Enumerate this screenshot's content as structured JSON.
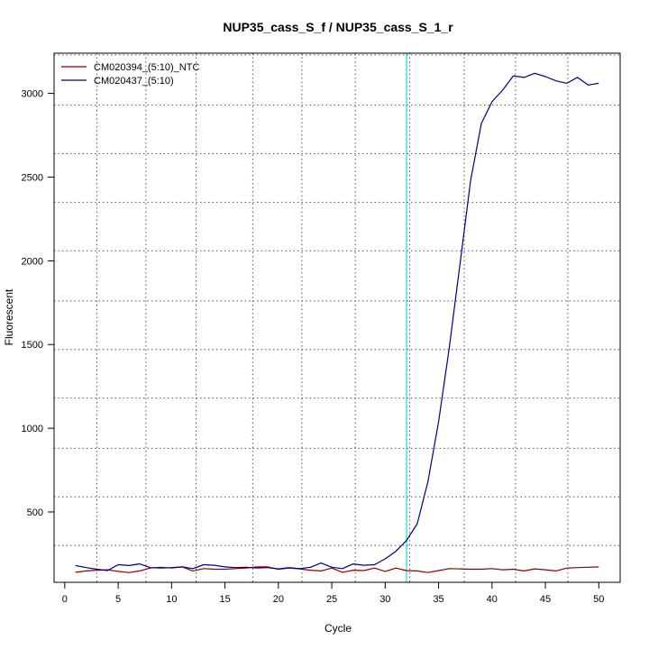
{
  "chart_data": {
    "type": "line",
    "title": "NUP35_cass_S_f / NUP35_cass_S_1_r",
    "xlabel": "Cycle",
    "ylabel": "Fluorescent",
    "xlim": [
      -1,
      52
    ],
    "ylim": [
      80,
      3240
    ],
    "x_ticks": [
      0,
      5,
      10,
      15,
      20,
      25,
      30,
      35,
      40,
      45,
      50
    ],
    "y_ticks": [
      500,
      1000,
      1500,
      2000,
      2500,
      3000
    ],
    "x_grid": [
      3,
      7.6,
      12.3,
      17.6,
      22.2,
      27.2,
      32.3,
      37.4,
      42.2,
      47.1
    ],
    "y_grid": [
      300,
      590,
      880,
      1180,
      1470,
      1760,
      2060,
      2350,
      2640,
      2930,
      3230
    ],
    "grid": true,
    "legend_position": "top-left",
    "threshold": {
      "x": 32,
      "color": "#00e5e5"
    },
    "x": [
      1,
      2,
      3,
      4,
      5,
      6,
      7,
      8,
      9,
      10,
      11,
      12,
      13,
      14,
      15,
      16,
      17,
      18,
      19,
      20,
      21,
      22,
      23,
      24,
      25,
      26,
      27,
      28,
      29,
      30,
      31,
      32,
      33,
      34,
      35,
      36,
      37,
      38,
      39,
      40,
      41,
      42,
      43,
      44,
      45,
      46,
      47,
      48,
      49,
      50
    ],
    "series": [
      {
        "name": "CM020394_(5:10)_NTC",
        "color": "#8b0000",
        "values": [
          140,
          148,
          152,
          155,
          145,
          138,
          148,
          165,
          170,
          165,
          172,
          148,
          162,
          158,
          158,
          162,
          165,
          172,
          172,
          158,
          165,
          160,
          152,
          148,
          165,
          140,
          152,
          150,
          165,
          145,
          165,
          150,
          148,
          138,
          150,
          162,
          160,
          158,
          158,
          162,
          155,
          158,
          148,
          160,
          155,
          148,
          165,
          168,
          170,
          172
        ]
      },
      {
        "name": "CM020437_(5:10)",
        "color": "#000080",
        "values": [
          180,
          168,
          158,
          150,
          185,
          180,
          190,
          168,
          165,
          168,
          172,
          162,
          185,
          182,
          172,
          168,
          170,
          165,
          168,
          160,
          168,
          162,
          170,
          195,
          170,
          162,
          190,
          182,
          185,
          220,
          265,
          330,
          430,
          680,
          1040,
          1480,
          1980,
          2480,
          2820,
          2950,
          3020,
          3105,
          3095,
          3120,
          3100,
          3075,
          3060,
          3095,
          3050,
          3060
        ]
      }
    ]
  }
}
